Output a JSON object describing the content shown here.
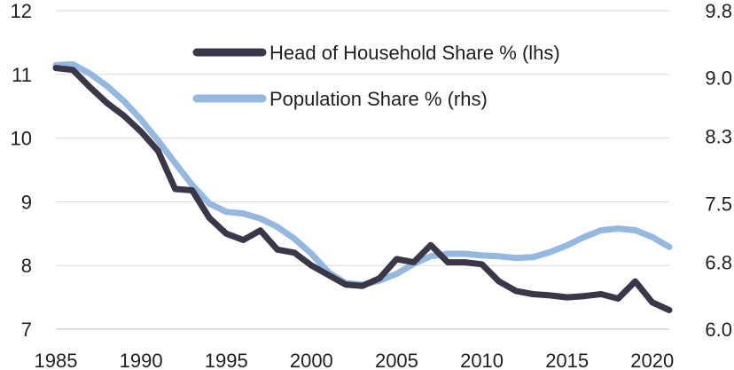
{
  "chart_data": {
    "type": "line",
    "title": "",
    "xlabel": "",
    "ylabel": "",
    "x": [
      1985,
      1986,
      1987,
      1988,
      1989,
      1990,
      1991,
      1992,
      1993,
      1994,
      1995,
      1996,
      1997,
      1998,
      1999,
      2000,
      2001,
      2002,
      2003,
      2004,
      2005,
      2006,
      2007,
      2008,
      2009,
      2010,
      2011,
      2012,
      2013,
      2014,
      2015,
      2016,
      2017,
      2018,
      2019,
      2020,
      2021
    ],
    "xlim": [
      1985,
      2021
    ],
    "x_ticks": [
      1985,
      1990,
      1995,
      2000,
      2005,
      2010,
      2015,
      2020
    ],
    "x_tick_labels": [
      "1985",
      "1990",
      "1995",
      "2000",
      "2005",
      "2010",
      "2015",
      "2020"
    ],
    "y_left": {
      "lim": [
        7,
        12
      ],
      "ticks": [
        7,
        8,
        9,
        10,
        11,
        12
      ],
      "tick_labels": [
        "7",
        "8",
        "9",
        "10",
        "11",
        "12"
      ]
    },
    "y_right": {
      "lim": [
        6.0,
        9.8
      ],
      "ticks": [
        6.0,
        6.8,
        7.5,
        8.3,
        9.0,
        9.8
      ],
      "tick_labels": [
        "6.0",
        "6.8",
        "7.5",
        "8.3",
        "9.0",
        "9.8"
      ]
    },
    "grid": "horizontal",
    "legend_position": "top-right",
    "series": [
      {
        "name": "Head of Household Share % (lhs)",
        "axis": "left",
        "color": "#3a3848",
        "values": [
          11.1,
          11.07,
          10.8,
          10.55,
          10.35,
          10.1,
          9.8,
          9.2,
          9.18,
          8.75,
          8.5,
          8.4,
          8.55,
          8.25,
          8.2,
          8.0,
          7.85,
          7.7,
          7.68,
          7.8,
          8.1,
          8.05,
          8.32,
          8.05,
          8.05,
          8.02,
          7.75,
          7.6,
          7.55,
          7.53,
          7.5,
          7.52,
          7.55,
          7.48,
          7.75,
          7.42,
          7.3
        ]
      },
      {
        "name": "Population Share % (rhs)",
        "axis": "right",
        "color": "#95b8e0",
        "values": [
          9.15,
          9.16,
          9.05,
          8.9,
          8.72,
          8.5,
          8.25,
          7.98,
          7.72,
          7.5,
          7.4,
          7.38,
          7.32,
          7.22,
          7.08,
          6.9,
          6.68,
          6.55,
          6.53,
          6.58,
          6.66,
          6.78,
          6.87,
          6.9,
          6.9,
          6.88,
          6.87,
          6.85,
          6.86,
          6.92,
          7.0,
          7.1,
          7.18,
          7.2,
          7.18,
          7.1,
          6.98
        ]
      }
    ]
  }
}
